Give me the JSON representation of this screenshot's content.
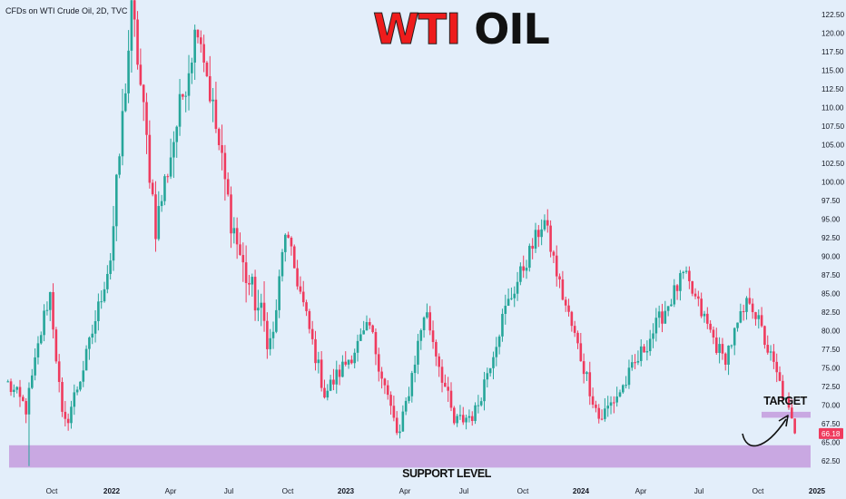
{
  "source_label": "CFDs on WTI Crude Oil, 2D, TVC",
  "headline": {
    "word1": "WTI",
    "word2": "OIL"
  },
  "colors": {
    "background": "#e3eefa",
    "candle_up": "#26a69a",
    "candle_down": "#ef3b5e",
    "zone_fill": "#c9a8e2",
    "headline_red": "#ee1c1c",
    "last_price_badge": "#ef3b5e"
  },
  "annotations": {
    "support_label": "SUPPORT LEVEL",
    "target_label": "TARGET",
    "arrow_icon": "curved-arrow-up-right-icon"
  },
  "chart_data": {
    "type": "candlestick",
    "symbol": "WTI Crude Oil",
    "interval": "2D",
    "x_axis_labels": [
      "Oct",
      "2022",
      "Apr",
      "Jul",
      "Oct",
      "2023",
      "Apr",
      "Jul",
      "Oct",
      "2024",
      "Apr",
      "Jul",
      "Oct",
      "2025"
    ],
    "y_ticks": [
      "122.50",
      "120.00",
      "117.50",
      "115.00",
      "112.50",
      "110.00",
      "107.50",
      "105.00",
      "102.50",
      "100.00",
      "97.50",
      "95.00",
      "92.50",
      "90.00",
      "87.50",
      "85.00",
      "82.50",
      "80.00",
      "77.50",
      "75.00",
      "72.50",
      "70.00",
      "67.50",
      "65.00",
      "62.50"
    ],
    "ylim": [
      61.0,
      123.5
    ],
    "last_price": "66.18",
    "support_zone": [
      61.6,
      64.6
    ],
    "target_zone": [
      68.3,
      69.1
    ],
    "price_path": [
      [
        2021.71,
        72.8
      ],
      [
        2021.78,
        69.5
      ],
      [
        2021.85,
        82.5
      ],
      [
        2021.87,
        85.0
      ],
      [
        2021.92,
        66.5
      ],
      [
        2022.0,
        75.5
      ],
      [
        2022.1,
        90.0
      ],
      [
        2022.18,
        123.5
      ],
      [
        2022.27,
        94.0
      ],
      [
        2022.43,
        121.8
      ],
      [
        2022.55,
        96.0
      ],
      [
        2022.6,
        88.5
      ],
      [
        2022.71,
        78.0
      ],
      [
        2022.76,
        93.5
      ],
      [
        2022.91,
        71.5
      ],
      [
        2023.08,
        80.5
      ],
      [
        2023.19,
        65.3
      ],
      [
        2023.29,
        83.0
      ],
      [
        2023.4,
        67.5
      ],
      [
        2023.48,
        69.0
      ],
      [
        2023.59,
        82.5
      ],
      [
        2023.74,
        95.0
      ],
      [
        2023.8,
        86.0
      ],
      [
        2023.95,
        68.0
      ],
      [
        2024.04,
        72.5
      ],
      [
        2024.27,
        87.5
      ],
      [
        2024.42,
        76.0
      ],
      [
        2024.52,
        84.5
      ],
      [
        2024.64,
        72.0
      ],
      [
        2024.69,
        66.2
      ]
    ]
  }
}
